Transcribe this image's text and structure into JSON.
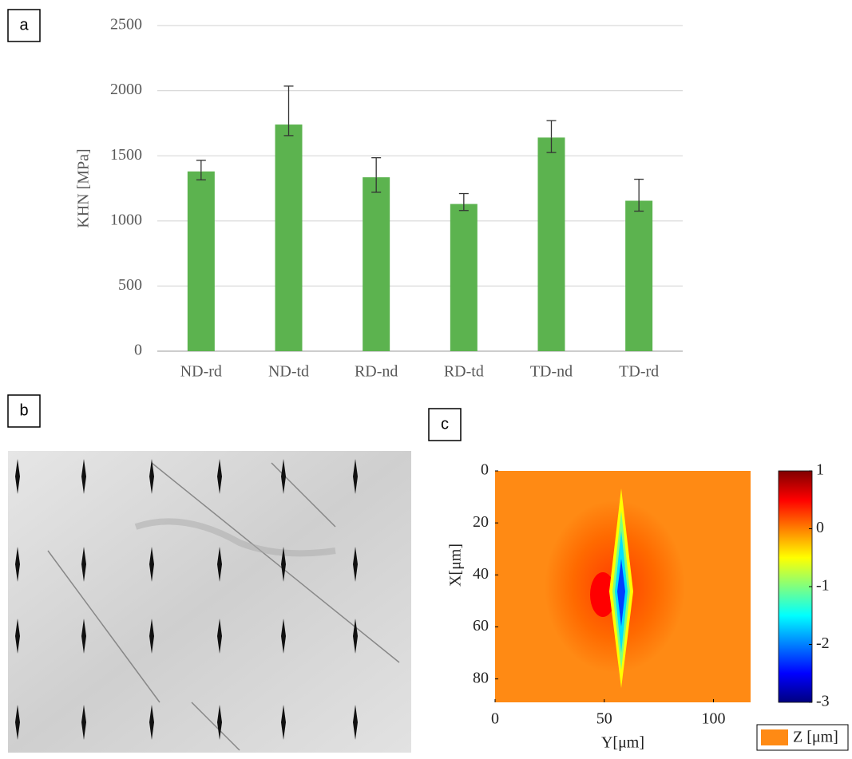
{
  "chart_data": [
    {
      "type": "bar",
      "panel_label": "a",
      "ylabel": "KHN [MPa]",
      "categories": [
        "ND-rd",
        "ND-td",
        "RD-nd",
        "RD-td",
        "TD-nd",
        "TD-rd"
      ],
      "values": [
        1380,
        1740,
        1335,
        1130,
        1640,
        1155
      ],
      "err_plus": [
        85,
        295,
        150,
        80,
        130,
        165
      ],
      "err_minus": [
        65,
        85,
        115,
        50,
        115,
        80
      ],
      "color": "#5cb34f",
      "ylim": [
        0,
        2500
      ],
      "yticks": [
        0,
        500,
        1000,
        1500,
        2000,
        2500
      ],
      "grid": true
    },
    {
      "type": "heatmap",
      "panel_label": "c",
      "xlabel": "Y[μm]",
      "ylabel": "X[μm]",
      "xlim": [
        0,
        117
      ],
      "ylim": [
        0,
        89
      ],
      "xticks": [
        0,
        50,
        100
      ],
      "yticks": [
        0,
        20,
        40,
        60,
        80
      ],
      "colorbar": {
        "lim": [
          -3,
          1
        ],
        "ticks": [
          1,
          0,
          -1,
          -2,
          -3
        ]
      },
      "legend": {
        "label": "Z [μm]",
        "color": "#ff8a14"
      }
    }
  ],
  "image_panel": {
    "panel_label": "b"
  }
}
